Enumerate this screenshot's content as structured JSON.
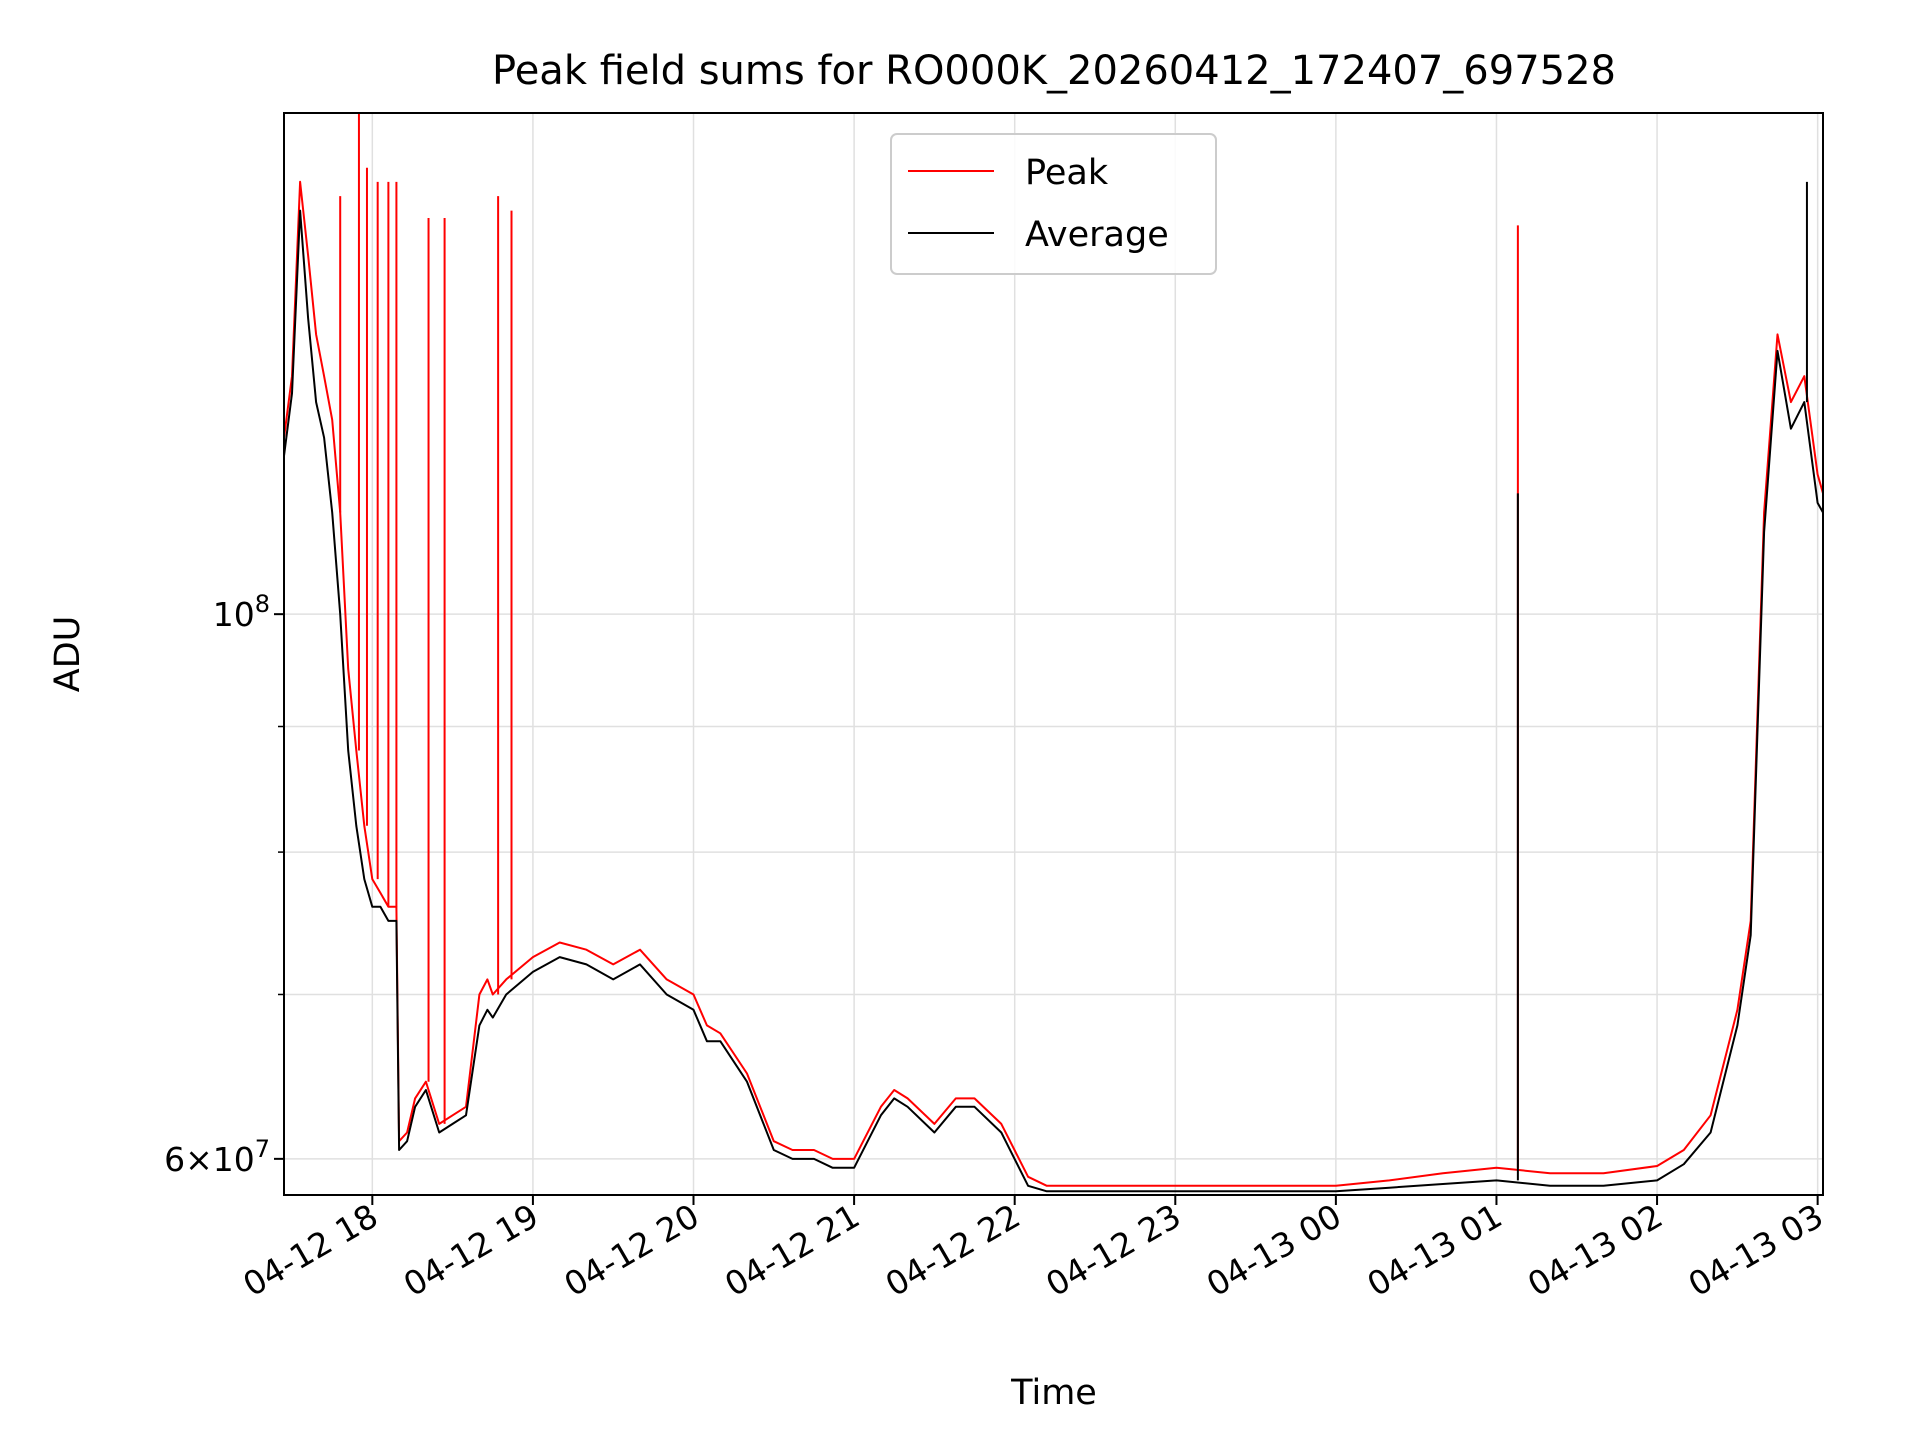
{
  "chart_data": {
    "type": "line",
    "title": "Peak field sums for RO000K_20260412_172407_697528",
    "xlabel": "Time",
    "ylabel": "ADU",
    "y_scale": "log",
    "grid": true,
    "legend_position": "top-center",
    "xlim": [
      "2026-04-12T17:27",
      "2026-04-13T03:02"
    ],
    "ylim": [
      58000000,
      160000000
    ],
    "x_ticks": [
      {
        "label": "04-12 18",
        "t": "2026-04-12T18:00"
      },
      {
        "label": "04-12 19",
        "t": "2026-04-12T19:00"
      },
      {
        "label": "04-12 20",
        "t": "2026-04-12T20:00"
      },
      {
        "label": "04-12 21",
        "t": "2026-04-12T21:00"
      },
      {
        "label": "04-12 22",
        "t": "2026-04-12T22:00"
      },
      {
        "label": "04-12 23",
        "t": "2026-04-12T23:00"
      },
      {
        "label": "04-13 00",
        "t": "2026-04-13T00:00"
      },
      {
        "label": "04-13 01",
        "t": "2026-04-13T01:00"
      },
      {
        "label": "04-13 02",
        "t": "2026-04-13T02:00"
      },
      {
        "label": "04-13 03",
        "t": "2026-04-13T03:00"
      }
    ],
    "y_ticks": [
      {
        "base": "10",
        "exp": "8",
        "value": 100000000
      },
      {
        "base": "6×10",
        "exp": "7",
        "value": 60000000
      }
    ],
    "y_minor_ticks": [
      70000000,
      80000000,
      90000000
    ],
    "series": [
      {
        "name": "Peak",
        "color": "#ff0000",
        "x": [
          "2026-04-12T17:27",
          "2026-04-12T17:30",
          "2026-04-12T17:33",
          "2026-04-12T17:36",
          "2026-04-12T17:39",
          "2026-04-12T17:42",
          "2026-04-12T17:45",
          "2026-04-12T17:48",
          "2026-04-12T17:51",
          "2026-04-12T17:54",
          "2026-04-12T17:57",
          "2026-04-12T18:00",
          "2026-04-12T18:03",
          "2026-04-12T18:06",
          "2026-04-12T18:09",
          "2026-04-12T18:10",
          "2026-04-12T18:13",
          "2026-04-12T18:16",
          "2026-04-12T18:20",
          "2026-04-12T18:25",
          "2026-04-12T18:30",
          "2026-04-12T18:35",
          "2026-04-12T18:40",
          "2026-04-12T18:43",
          "2026-04-12T18:45",
          "2026-04-12T18:50",
          "2026-04-12T19:00",
          "2026-04-12T19:10",
          "2026-04-12T19:20",
          "2026-04-12T19:30",
          "2026-04-12T19:40",
          "2026-04-12T19:50",
          "2026-04-12T20:00",
          "2026-04-12T20:05",
          "2026-04-12T20:10",
          "2026-04-12T20:20",
          "2026-04-12T20:30",
          "2026-04-12T20:37",
          "2026-04-12T20:45",
          "2026-04-12T20:52",
          "2026-04-12T21:00",
          "2026-04-12T21:10",
          "2026-04-12T21:15",
          "2026-04-12T21:20",
          "2026-04-12T21:30",
          "2026-04-12T21:38",
          "2026-04-12T21:45",
          "2026-04-12T21:55",
          "2026-04-12T22:05",
          "2026-04-12T22:12",
          "2026-04-12T22:20",
          "2026-04-12T22:40",
          "2026-04-12T23:00",
          "2026-04-12T23:20",
          "2026-04-12T23:40",
          "2026-04-13T00:00",
          "2026-04-13T00:20",
          "2026-04-13T00:40",
          "2026-04-13T01:00",
          "2026-04-13T01:20",
          "2026-04-13T01:40",
          "2026-04-13T02:00",
          "2026-04-13T02:10",
          "2026-04-13T02:20",
          "2026-04-13T02:30",
          "2026-04-13T02:35",
          "2026-04-13T02:40",
          "2026-04-13T02:45",
          "2026-04-13T02:50",
          "2026-04-13T02:55",
          "2026-04-13T03:00",
          "2026-04-13T03:02"
        ],
        "values": [
          118000000,
          125000000,
          150000000,
          140000000,
          130000000,
          125000000,
          120000000,
          110000000,
          95000000,
          88000000,
          82000000,
          78000000,
          77000000,
          76000000,
          76000000,
          61000000,
          61500000,
          63500000,
          64500000,
          62000000,
          62500000,
          63000000,
          70000000,
          71000000,
          70000000,
          71000000,
          72500000,
          73500000,
          73000000,
          72000000,
          73000000,
          71000000,
          70000000,
          68000000,
          67500000,
          65000000,
          61000000,
          60500000,
          60500000,
          60000000,
          60000000,
          63000000,
          64000000,
          63500000,
          62000000,
          63500000,
          63500000,
          62000000,
          59000000,
          58500000,
          58500000,
          58500000,
          58500000,
          58500000,
          58500000,
          58500000,
          58800000,
          59200000,
          59500000,
          59200000,
          59200000,
          59600000,
          60500000,
          62500000,
          69000000,
          75000000,
          110000000,
          130000000,
          122000000,
          125000000,
          114000000,
          112000000
        ],
        "spikes": [
          {
            "t": "2026-04-12T17:48",
            "value": 148000000
          },
          {
            "t": "2026-04-12T17:55",
            "value": 160000000
          },
          {
            "t": "2026-04-12T17:58",
            "value": 152000000
          },
          {
            "t": "2026-04-12T18:02",
            "value": 150000000
          },
          {
            "t": "2026-04-12T18:06",
            "value": 150000000
          },
          {
            "t": "2026-04-12T18:09",
            "value": 150000000
          },
          {
            "t": "2026-04-12T18:21",
            "value": 145000000
          },
          {
            "t": "2026-04-12T18:27",
            "value": 145000000
          },
          {
            "t": "2026-04-12T18:47",
            "value": 148000000
          },
          {
            "t": "2026-04-12T18:52",
            "value": 146000000
          },
          {
            "t": "2026-04-13T01:08",
            "value": 144000000
          }
        ]
      },
      {
        "name": "Average",
        "color": "#000000",
        "x": [
          "2026-04-12T17:27",
          "2026-04-12T17:30",
          "2026-04-12T17:33",
          "2026-04-12T17:36",
          "2026-04-12T17:39",
          "2026-04-12T17:42",
          "2026-04-12T17:45",
          "2026-04-12T17:48",
          "2026-04-12T17:51",
          "2026-04-12T17:54",
          "2026-04-12T17:57",
          "2026-04-12T18:00",
          "2026-04-12T18:03",
          "2026-04-12T18:06",
          "2026-04-12T18:09",
          "2026-04-12T18:10",
          "2026-04-12T18:13",
          "2026-04-12T18:16",
          "2026-04-12T18:20",
          "2026-04-12T18:25",
          "2026-04-12T18:30",
          "2026-04-12T18:35",
          "2026-04-12T18:40",
          "2026-04-12T18:43",
          "2026-04-12T18:45",
          "2026-04-12T18:50",
          "2026-04-12T19:00",
          "2026-04-12T19:10",
          "2026-04-12T19:20",
          "2026-04-12T19:30",
          "2026-04-12T19:40",
          "2026-04-12T19:50",
          "2026-04-12T20:00",
          "2026-04-12T20:05",
          "2026-04-12T20:10",
          "2026-04-12T20:20",
          "2026-04-12T20:30",
          "2026-04-12T20:37",
          "2026-04-12T20:45",
          "2026-04-12T20:52",
          "2026-04-12T21:00",
          "2026-04-12T21:10",
          "2026-04-12T21:15",
          "2026-04-12T21:20",
          "2026-04-12T21:30",
          "2026-04-12T21:38",
          "2026-04-12T21:45",
          "2026-04-12T21:55",
          "2026-04-12T22:05",
          "2026-04-12T22:12",
          "2026-04-12T22:20",
          "2026-04-12T22:40",
          "2026-04-12T23:00",
          "2026-04-12T23:20",
          "2026-04-12T23:40",
          "2026-04-13T00:00",
          "2026-04-13T00:20",
          "2026-04-13T00:40",
          "2026-04-13T01:00",
          "2026-04-13T01:20",
          "2026-04-13T01:40",
          "2026-04-13T02:00",
          "2026-04-13T02:10",
          "2026-04-13T02:20",
          "2026-04-13T02:30",
          "2026-04-13T02:35",
          "2026-04-13T02:40",
          "2026-04-13T02:45",
          "2026-04-13T02:50",
          "2026-04-13T02:55",
          "2026-04-13T03:00",
          "2026-04-13T03:02"
        ],
        "values": [
          116000000,
          123000000,
          146000000,
          132000000,
          122000000,
          118000000,
          110000000,
          100000000,
          88000000,
          82000000,
          78000000,
          76000000,
          76000000,
          75000000,
          75000000,
          60500000,
          61000000,
          63000000,
          64000000,
          61500000,
          62000000,
          62500000,
          68000000,
          69000000,
          68500000,
          70000000,
          71500000,
          72500000,
          72000000,
          71000000,
          72000000,
          70000000,
          69000000,
          67000000,
          67000000,
          64500000,
          60500000,
          60000000,
          60000000,
          59500000,
          59500000,
          62500000,
          63500000,
          63000000,
          61500000,
          63000000,
          63000000,
          61500000,
          58500000,
          58200000,
          58200000,
          58200000,
          58200000,
          58200000,
          58200000,
          58200000,
          58400000,
          58600000,
          58800000,
          58500000,
          58500000,
          58800000,
          59700000,
          61500000,
          68000000,
          74000000,
          108000000,
          128000000,
          119000000,
          122000000,
          111000000,
          110000000
        ],
        "spikes": [
          {
            "t": "2026-04-13T01:08",
            "value": 112000000
          },
          {
            "t": "2026-04-13T02:56",
            "value": 150000000
          }
        ]
      }
    ]
  }
}
